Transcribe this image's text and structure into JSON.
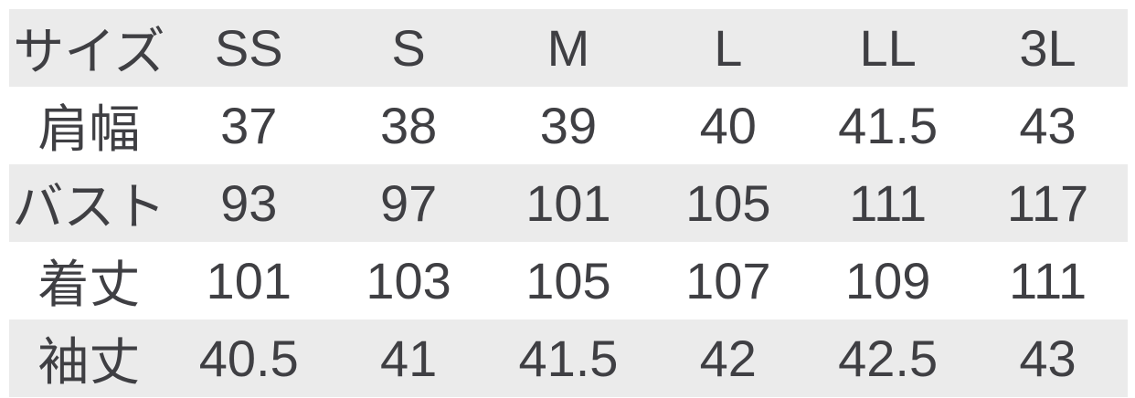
{
  "colors": {
    "band_gray": "#ebebeb",
    "background": "#ffffff",
    "text": "#3f3f43"
  },
  "chart_data": {
    "type": "table",
    "title": "",
    "header": [
      "サイズ",
      "SS",
      "S",
      "M",
      "L",
      "LL",
      "3L"
    ],
    "rows": [
      {
        "label": "肩幅",
        "values": [
          "37",
          "38",
          "39",
          "40",
          "41.5",
          "43"
        ]
      },
      {
        "label": "バスト",
        "values": [
          "93",
          "97",
          "101",
          "105",
          "111",
          "117"
        ]
      },
      {
        "label": "着丈",
        "values": [
          "101",
          "103",
          "105",
          "107",
          "109",
          "111"
        ]
      },
      {
        "label": "袖丈",
        "values": [
          "40.5",
          "41",
          "41.5",
          "42",
          "42.5",
          "43"
        ]
      }
    ],
    "layout": {
      "columns": 7,
      "banding": [
        "gray",
        "white",
        "gray",
        "white",
        "gray"
      ],
      "grid": "none",
      "legend": "none"
    }
  }
}
